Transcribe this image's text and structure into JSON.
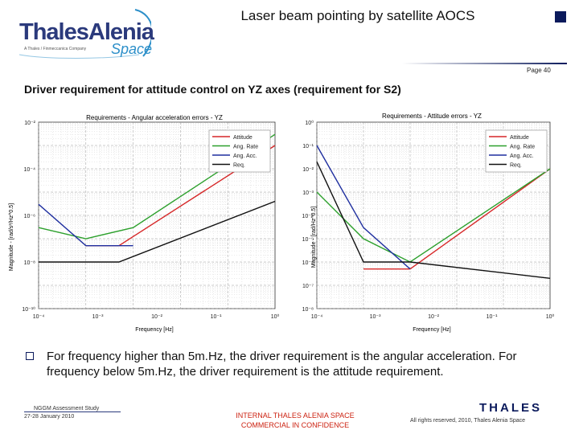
{
  "header": {
    "logo_main": "ThalesAlenia",
    "logo_space": "Space",
    "logo_tagline": "A Thales / Finmeccanica Company",
    "title": "Laser beam pointing by satellite AOCS",
    "page": "Page 40"
  },
  "subtitle": "Driver requirement for attitude control on YZ axes (requirement for S2)",
  "colors": {
    "accent": "#0b1a5c",
    "confidential": "#cc2211",
    "attitude": "#d62728",
    "rate": "#2ca02c",
    "acc": "#1f2f9f",
    "req": "#111111"
  },
  "chart_data": [
    {
      "type": "line",
      "title": "Requirements - Angular acceleration errors - YZ",
      "xlabel": "Frequency [Hz]",
      "ylabel": "Magnitude - [rad/s²/Hz^0.5]",
      "xscale": "log",
      "yscale": "log",
      "xlim": [
        0.0001,
        10
      ],
      "ylim": [
        1e-10,
        0.01
      ],
      "xticks": [
        "10⁻⁴",
        "10⁻³",
        "10⁻²",
        "10⁻¹",
        "10⁰"
      ],
      "yticks": [
        "10⁻²",
        "10⁻⁴",
        "10⁻⁶",
        "10⁻⁸",
        "10⁻¹⁰"
      ],
      "legend": "top-right",
      "series": [
        {
          "name": "Attitude",
          "color": "#d62728",
          "x": [
            0.001,
            0.005,
            10
          ],
          "y": [
            5e-08,
            5e-08,
            0.001
          ]
        },
        {
          "name": "Ang. Rate",
          "color": "#2ca02c",
          "x": [
            0.0001,
            0.001,
            0.01,
            10
          ],
          "y": [
            3e-07,
            1e-07,
            3e-07,
            0.003
          ]
        },
        {
          "name": "Ang. Acc.",
          "color": "#1f2f9f",
          "x": [
            0.0001,
            0.001,
            0.005,
            0.01
          ],
          "y": [
            3e-06,
            5e-08,
            5e-08,
            5e-08
          ]
        },
        {
          "name": "Req.",
          "color": "#111111",
          "x": [
            0.0001,
            0.001,
            0.005,
            10
          ],
          "y": [
            1e-08,
            1e-08,
            1e-08,
            4e-06
          ]
        }
      ]
    },
    {
      "type": "line",
      "title": "Requirements - Attitude errors - YZ",
      "xlabel": "Frequency [Hz]",
      "ylabel": "Magnitude - [rad/Hz^0.5]",
      "xscale": "log",
      "yscale": "log",
      "xlim": [
        0.0001,
        10
      ],
      "ylim": [
        1e-08,
        1.0
      ],
      "xticks": [
        "10⁻⁴",
        "10⁻³",
        "10⁻²",
        "10⁻¹",
        "10⁰"
      ],
      "yticks": [
        "10⁰",
        "10⁻¹",
        "10⁻²",
        "10⁻³",
        "10⁻⁴",
        "10⁻⁵",
        "10⁻⁶",
        "10⁻⁷",
        "10⁻⁸"
      ],
      "legend": "top-right",
      "series": [
        {
          "name": "Attitude",
          "color": "#d62728",
          "x": [
            0.001,
            0.01,
            10
          ],
          "y": [
            5e-07,
            5e-07,
            0.01
          ]
        },
        {
          "name": "Ang. Rate",
          "color": "#2ca02c",
          "x": [
            0.0001,
            0.001,
            0.01,
            10
          ],
          "y": [
            0.001,
            1e-05,
            1e-06,
            0.01
          ]
        },
        {
          "name": "Ang. Acc.",
          "color": "#1f2f9f",
          "x": [
            0.0001,
            0.001,
            0.01
          ],
          "y": [
            0.1,
            3e-05,
            5e-07
          ]
        },
        {
          "name": "Req.",
          "color": "#111111",
          "x": [
            0.0001,
            0.001,
            0.01,
            10
          ],
          "y": [
            0.02,
            1e-06,
            1e-06,
            2e-07
          ]
        }
      ]
    }
  ],
  "bullet": "For frequency higher than 5m.Hz, the driver requirement is the angular acceleration. For frequency below 5m.Hz, the driver requirement is the attitude requirement.",
  "footer": {
    "study": "NGGM Assessment Study",
    "date": "27-28 January 2010",
    "confidential_1": "INTERNAL THALES ALENIA SPACE",
    "confidential_2": "COMMERCIAL IN CONFIDENCE",
    "thales_logo": "THALES",
    "rights": "All rights reserved, 2010, Thales Alenia Space"
  }
}
